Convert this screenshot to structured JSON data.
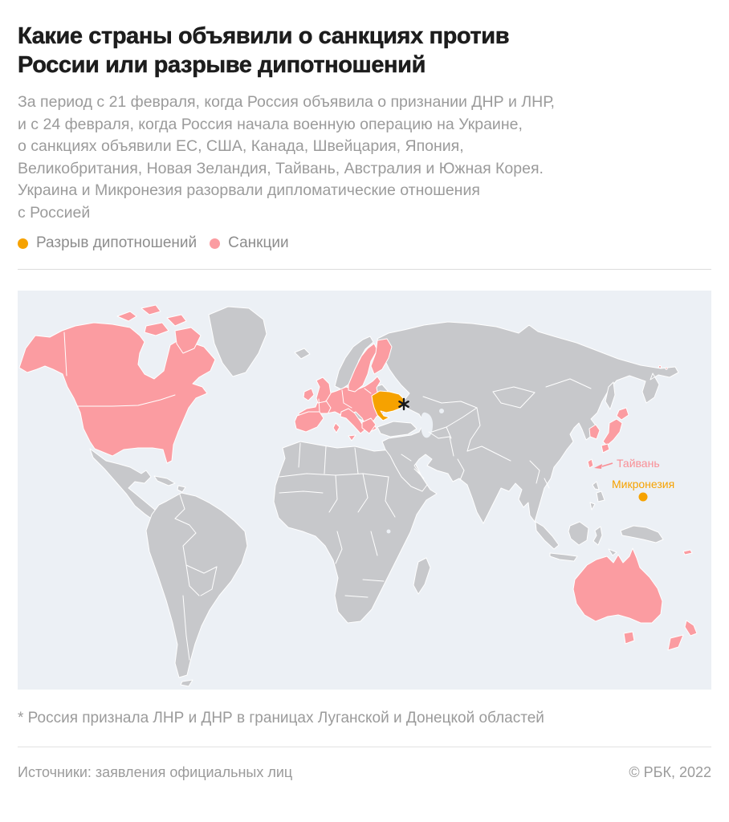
{
  "header": {
    "title_lines": [
      "Какие страны объявили о санкциях против",
      "России или разрыве дипотношений"
    ],
    "subtitle_lines": [
      "За период с 21 февраля, когда Россия объявила о признании ДНР и ЛНР,",
      "и с 24 февраля, когда Россия начала военную операцию на Украине,",
      "о санкциях объявили ЕС, США, Канада, Швейцария, Япония,",
      "Великобритания, Новая Зеландия, Тайвань, Австралия и Южная Корея.",
      "Украина и Микронезия разорвали дипломатические отношения",
      "с Россией"
    ]
  },
  "legend": {
    "items": [
      {
        "label": "Разрыв дипотношений",
        "color": "#F6A200"
      },
      {
        "label": "Санкции",
        "color": "#FB9CA1"
      }
    ]
  },
  "map": {
    "labels": {
      "taiwan": "Тайвань",
      "micronesia": "Микронезия",
      "recognition_marker": "*"
    },
    "colors": {
      "ocean": "#ECF0F5",
      "land": "#C7C8CB",
      "sanctions": "#FB9CA1",
      "broke_relations": "#F6A200",
      "border": "#FFFFFF"
    },
    "categories": [
      {
        "name": "Разрыв дипотношений",
        "color": "#F6A200",
        "countries": [
          "Украина",
          "Микронезия"
        ]
      },
      {
        "name": "Санкции",
        "color": "#FB9CA1",
        "countries": [
          "ЕС",
          "США",
          "Канада",
          "Швейцария",
          "Япония",
          "Великобритания",
          "Новая Зеландия",
          "Тайвань",
          "Австралия",
          "Южная Корея"
        ]
      }
    ]
  },
  "footnote": "* Россия признала ЛНР и ДНР в границах Луганской и Донецкой областей",
  "footer": {
    "source": "Источники: заявления официальных лиц",
    "copyright": "© РБК, 2022"
  }
}
